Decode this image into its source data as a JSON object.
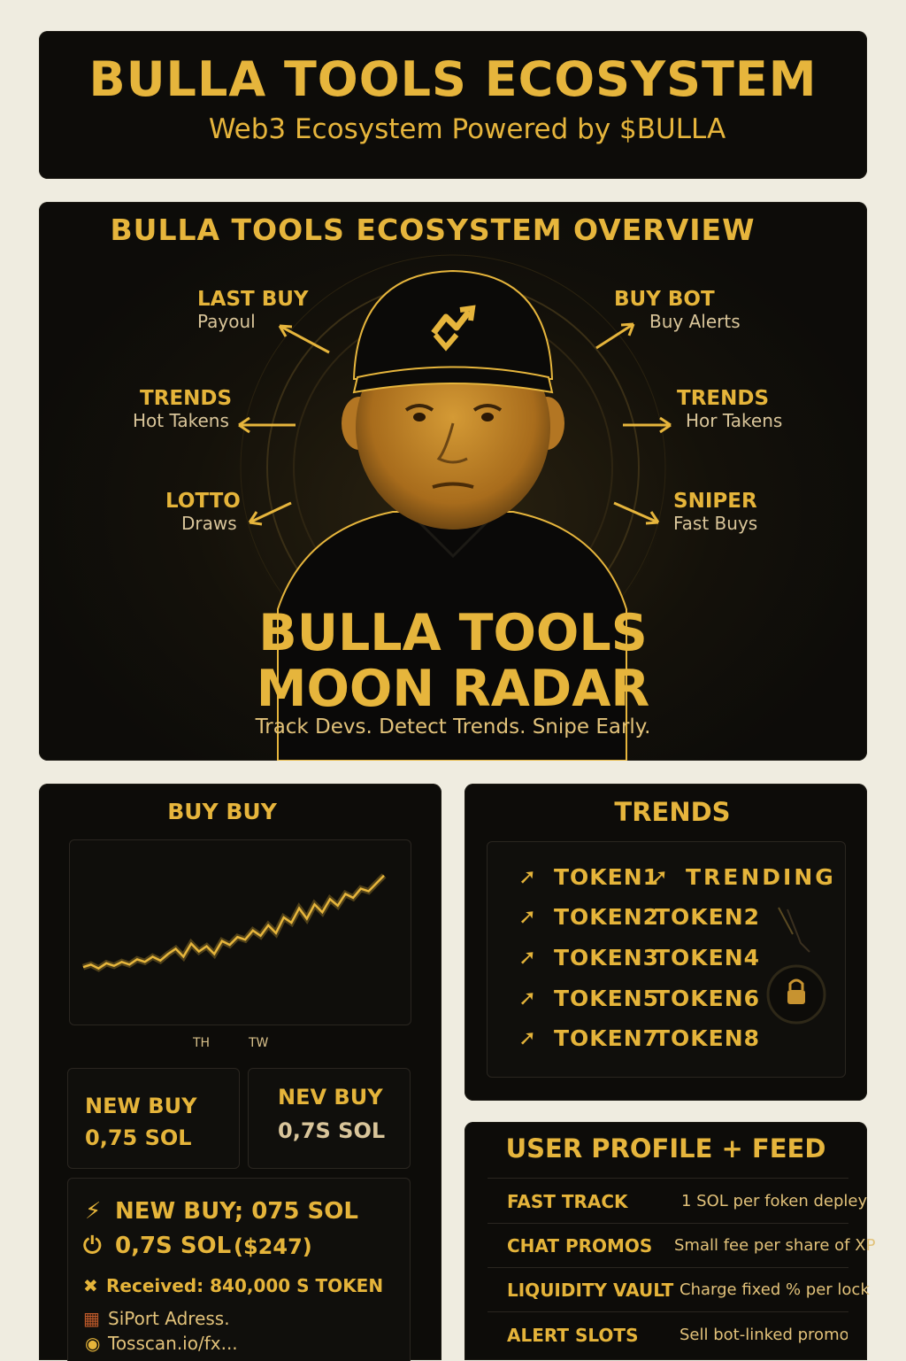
{
  "header": {
    "title": "BULLA TOOLS ECOSYSTEM",
    "subtitle": "Web3 Ecosystem Powered by $BULLA"
  },
  "overview": {
    "title": "BULLA TOOLS ECOSYSTEM OVERVIEW",
    "features": [
      {
        "title": "LAST BUY",
        "sub": "Payoul"
      },
      {
        "title": "TRENDS",
        "sub": "Hot Takens"
      },
      {
        "title": "LOTTO",
        "sub": "Draws"
      },
      {
        "title": "BUY BOT",
        "sub": "Buy Alerts"
      },
      {
        "title": "TRENDS",
        "sub": "Hor Takens"
      },
      {
        "title": "SNIPER",
        "sub": "Fast Buys"
      }
    ],
    "headline_line1": "BULLA TOOLS",
    "headline_line2": "MOON RADAR",
    "tagline": "Track Devs. Detect Trends. Snipe Early."
  },
  "buy_panel": {
    "title": "BUY BUY",
    "chart_ticks": [
      "TH",
      "TW"
    ],
    "card1": {
      "label": "NEW BUY",
      "value": "0,75 SOL"
    },
    "card2": {
      "label": "NEV BUY",
      "value": "0,7S SOL"
    },
    "details": {
      "line1": "NEW BUY; 075 SOL",
      "line2_amount": "0,7S SOL",
      "line2_usd": "($247)",
      "received": "Received: 840,000 S TOKEN",
      "report": "SiPort Adress.",
      "link": "Tosscan.io/fx..."
    }
  },
  "chart_data": {
    "type": "line",
    "title": "",
    "xlabel": "",
    "ylabel": "",
    "x": [
      0,
      1,
      2,
      3,
      4,
      5,
      6,
      7,
      8,
      9,
      10,
      11,
      12,
      13,
      14,
      15,
      16,
      17,
      18,
      19,
      20,
      21,
      22,
      23,
      24,
      25,
      26,
      27,
      28,
      29,
      30,
      31,
      32,
      33,
      34,
      35,
      36,
      37,
      38,
      39
    ],
    "series": [
      {
        "values": [
          10,
          12,
          9,
          13,
          11,
          14,
          12,
          16,
          14,
          18,
          15,
          20,
          24,
          18,
          28,
          22,
          26,
          20,
          30,
          27,
          33,
          31,
          38,
          34,
          42,
          36,
          48,
          44,
          55,
          47,
          58,
          52,
          62,
          57,
          66,
          63,
          70,
          68,
          74,
          80
        ]
      }
    ],
    "ylim": [
      0,
      90
    ],
    "x_tick_labels": [
      "TH",
      "TW"
    ],
    "grid": false,
    "color": "#e6b53c"
  },
  "trends_panel": {
    "title": "TRENDS",
    "rows": [
      {
        "a": "TOKEN1",
        "b": "TRENDING"
      },
      {
        "a": "TOKEN2",
        "b": "TOKEN2"
      },
      {
        "a": "TOKEN3",
        "b": "TOKEN4"
      },
      {
        "a": "TOKEN5",
        "b": "TOKEN6"
      },
      {
        "a": "TOKEN7",
        "b": "TOKEN8"
      }
    ]
  },
  "profile_panel": {
    "title": "USER PROFILE + FEED",
    "rows": [
      {
        "label": "FAST TRACK",
        "desc": "1 SOL per foken depley"
      },
      {
        "label": "CHAT PROMOS",
        "desc": "Small fee per share of XP"
      },
      {
        "label": "LIQUIDITY VAULT",
        "desc": "Charge fixed % per lock"
      },
      {
        "label": "ALERT SLOTS",
        "desc": "Sell bot-linked promo sp"
      }
    ]
  },
  "icons": {
    "logo": "bull-arrow-logo-icon",
    "arrows": "arrow-icon",
    "lightning": "lightning-icon",
    "power": "power-icon",
    "lock": "lock-icon"
  },
  "colors": {
    "accent": "#e6b53c",
    "background": "#0d0c09",
    "page": "#efece0"
  }
}
